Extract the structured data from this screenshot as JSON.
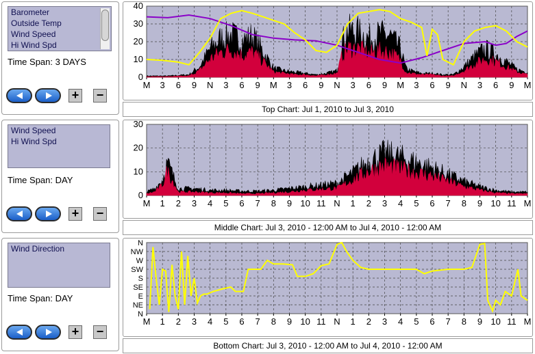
{
  "panels": [
    {
      "list_items": [
        "Barometer",
        "Outside Temp",
        "Wind Speed",
        "Hi Wind Spd"
      ],
      "time_span": "Time Span:   3 DAYS"
    },
    {
      "list_items": [
        "Wind Speed",
        "Hi Wind Spd"
      ],
      "time_span": "Time Span:  DAY"
    },
    {
      "list_items": [
        "Wind Direction"
      ],
      "time_span": "Time Span:  DAY"
    }
  ],
  "buttons": {
    "plus": "+",
    "minus": "−"
  },
  "colors": {
    "plot_bg": "#b9b9d2",
    "black": "#000000",
    "crimson": "#d2003c",
    "yellow": "#ffff00",
    "purple": "#8a00c8",
    "nav_blue": "#2f7ae0"
  },
  "chart_data": [
    {
      "type": "line",
      "title": "Top Chart:  Jul 1, 2010  to  Jul 3, 2010",
      "ylim": [
        0,
        40
      ],
      "yticks": [
        "0",
        "10",
        "20",
        "30",
        "40"
      ],
      "xticks": [
        "M",
        "3",
        "6",
        "9",
        "N",
        "3",
        "6",
        "9",
        "M",
        "3",
        "6",
        "9",
        "N",
        "3",
        "6",
        "9",
        "M",
        "3",
        "6",
        "9",
        "N",
        "3",
        "6",
        "9",
        "M"
      ],
      "x_unit": "hours",
      "xlim": [
        0,
        72
      ],
      "series": [
        {
          "key": "purple",
          "points": [
            [
              0,
              34
            ],
            [
              4,
              33.5
            ],
            [
              8,
              35
            ],
            [
              12,
              33
            ],
            [
              16,
              29
            ],
            [
              20,
              24
            ],
            [
              24,
              22
            ],
            [
              28,
              21
            ],
            [
              32,
              20.5
            ],
            [
              36,
              18
            ],
            [
              40,
              14
            ],
            [
              44,
              10
            ],
            [
              48,
              8
            ],
            [
              52,
              11
            ],
            [
              56,
              15
            ],
            [
              60,
              19
            ],
            [
              64,
              20
            ],
            [
              66,
              18
            ],
            [
              68,
              19
            ],
            [
              70,
              23
            ],
            [
              72,
              26
            ]
          ]
        },
        {
          "key": "yellow",
          "points": [
            [
              0,
              10
            ],
            [
              3,
              9.5
            ],
            [
              6,
              8.5
            ],
            [
              8,
              7
            ],
            [
              10,
              14
            ],
            [
              12,
              22
            ],
            [
              14,
              33
            ],
            [
              16,
              36
            ],
            [
              18,
              37.5
            ],
            [
              20,
              36
            ],
            [
              22,
              34
            ],
            [
              24,
              32
            ],
            [
              26,
              30
            ],
            [
              28,
              25
            ],
            [
              30,
              21
            ],
            [
              32,
              15
            ],
            [
              34,
              14
            ],
            [
              36,
              18
            ],
            [
              38,
              30
            ],
            [
              40,
              36
            ],
            [
              42,
              37
            ],
            [
              44,
              38
            ],
            [
              46,
              37
            ],
            [
              48,
              33
            ],
            [
              50,
              31
            ],
            [
              52,
              28
            ],
            [
              53,
              12
            ],
            [
              54,
              27
            ],
            [
              55,
              24
            ],
            [
              56,
              10
            ],
            [
              58,
              7
            ],
            [
              60,
              20
            ],
            [
              62,
              26
            ],
            [
              64,
              28
            ],
            [
              66,
              29
            ],
            [
              68,
              26
            ],
            [
              70,
              20
            ],
            [
              72,
              17
            ]
          ]
        },
        {
          "key": "black_band",
          "envelope": [
            [
              0,
              1
            ],
            [
              4,
              1
            ],
            [
              8,
              2
            ],
            [
              10,
              8
            ],
            [
              12,
              22
            ],
            [
              14,
              30
            ],
            [
              16,
              33
            ],
            [
              18,
              28
            ],
            [
              20,
              32
            ],
            [
              22,
              20
            ],
            [
              24,
              7
            ],
            [
              26,
              5
            ],
            [
              28,
              4
            ],
            [
              30,
              3
            ],
            [
              32,
              2
            ],
            [
              34,
              3
            ],
            [
              36,
              5
            ],
            [
              37,
              28
            ],
            [
              38,
              36
            ],
            [
              40,
              35
            ],
            [
              42,
              30
            ],
            [
              44,
              33
            ],
            [
              46,
              32
            ],
            [
              48,
              22
            ],
            [
              49,
              7
            ],
            [
              50,
              5
            ],
            [
              52,
              3
            ],
            [
              54,
              3
            ],
            [
              56,
              2
            ],
            [
              58,
              2
            ],
            [
              60,
              8
            ],
            [
              62,
              16
            ],
            [
              64,
              22
            ],
            [
              66,
              18
            ],
            [
              68,
              12
            ],
            [
              70,
              6
            ],
            [
              72,
              4
            ]
          ]
        },
        {
          "key": "red_band",
          "envelope": [
            [
              0,
              0.5
            ],
            [
              4,
              0.5
            ],
            [
              8,
              1
            ],
            [
              10,
              5
            ],
            [
              12,
              14
            ],
            [
              14,
              19
            ],
            [
              16,
              21
            ],
            [
              18,
              17
            ],
            [
              20,
              19
            ],
            [
              22,
              12
            ],
            [
              24,
              4
            ],
            [
              26,
              3
            ],
            [
              28,
              2
            ],
            [
              30,
              2
            ],
            [
              32,
              1
            ],
            [
              34,
              2
            ],
            [
              36,
              3
            ],
            [
              37,
              17
            ],
            [
              38,
              22
            ],
            [
              40,
              22
            ],
            [
              42,
              18
            ],
            [
              44,
              20
            ],
            [
              46,
              19
            ],
            [
              48,
              13
            ],
            [
              49,
              4
            ],
            [
              50,
              3
            ],
            [
              52,
              2
            ],
            [
              54,
              2
            ],
            [
              56,
              1
            ],
            [
              58,
              1
            ],
            [
              60,
              5
            ],
            [
              62,
              10
            ],
            [
              64,
              14
            ],
            [
              66,
              12
            ],
            [
              68,
              8
            ],
            [
              70,
              4
            ],
            [
              72,
              2
            ]
          ]
        }
      ]
    },
    {
      "type": "line",
      "title": "Middle Chart:  Jul 3, 2010 - 12:00 AM  to  Jul 4, 2010 - 12:00 AM",
      "ylim": [
        0,
        30
      ],
      "yticks": [
        "0",
        "10",
        "20",
        "30"
      ],
      "xticks": [
        "M",
        "1",
        "2",
        "3",
        "4",
        "5",
        "6",
        "7",
        "8",
        "9",
        "10",
        "11",
        "N",
        "1",
        "2",
        "3",
        "4",
        "5",
        "6",
        "7",
        "8",
        "9",
        "10",
        "11",
        "M"
      ],
      "x_unit": "hours",
      "xlim": [
        0,
        24
      ],
      "series": [
        {
          "key": "black_band",
          "envelope": [
            [
              0,
              2
            ],
            [
              0.5,
              4
            ],
            [
              1,
              9
            ],
            [
              1.3,
              19
            ],
            [
              1.6,
              13
            ],
            [
              2,
              4
            ],
            [
              3,
              4
            ],
            [
              4,
              3
            ],
            [
              5,
              3
            ],
            [
              6,
              2.5
            ],
            [
              7,
              2.5
            ],
            [
              8,
              3
            ],
            [
              9,
              4
            ],
            [
              10,
              5
            ],
            [
              11,
              6
            ],
            [
              12,
              7
            ],
            [
              13,
              13
            ],
            [
              14,
              20
            ],
            [
              15,
              24
            ],
            [
              16,
              22
            ],
            [
              17,
              19
            ],
            [
              18,
              16
            ],
            [
              19,
              12
            ],
            [
              20,
              8
            ],
            [
              21,
              5
            ],
            [
              22,
              3
            ],
            [
              23,
              2
            ],
            [
              24,
              2
            ]
          ]
        },
        {
          "key": "red_band",
          "envelope": [
            [
              0,
              1
            ],
            [
              0.5,
              2
            ],
            [
              1,
              6
            ],
            [
              1.3,
              14
            ],
            [
              1.6,
              9
            ],
            [
              2,
              2
            ],
            [
              3,
              2
            ],
            [
              4,
              1.5
            ],
            [
              5,
              1.5
            ],
            [
              6,
              1
            ],
            [
              7,
              1
            ],
            [
              8,
              1.5
            ],
            [
              9,
              2
            ],
            [
              10,
              3
            ],
            [
              11,
              3.5
            ],
            [
              12,
              4
            ],
            [
              13,
              9
            ],
            [
              14,
              14
            ],
            [
              15,
              17
            ],
            [
              16,
              15
            ],
            [
              17,
              13
            ],
            [
              18,
              11
            ],
            [
              19,
              8
            ],
            [
              20,
              5
            ],
            [
              21,
              3
            ],
            [
              22,
              1.5
            ],
            [
              23,
              1
            ],
            [
              24,
              1
            ]
          ]
        }
      ]
    },
    {
      "type": "line",
      "title": "Bottom Chart:  Jul 3, 2010 - 12:00 AM  to  Jul 4, 2010 - 12:00 AM",
      "ylim": [
        0,
        8
      ],
      "yticks": [
        "N",
        "NE",
        "E",
        "SE",
        "S",
        "SW",
        "W",
        "NW",
        "N"
      ],
      "xticks": [
        "M",
        "1",
        "2",
        "3",
        "4",
        "5",
        "6",
        "7",
        "8",
        "9",
        "10",
        "11",
        "N",
        "1",
        "2",
        "3",
        "4",
        "5",
        "6",
        "7",
        "8",
        "9",
        "10",
        "11",
        "M"
      ],
      "x_unit": "hours",
      "xlim": [
        0,
        24
      ],
      "series": [
        {
          "key": "yellow",
          "points": [
            [
              0.2,
              0.5
            ],
            [
              0.4,
              7.5
            ],
            [
              0.6,
              4
            ],
            [
              0.8,
              1
            ],
            [
              1,
              5
            ],
            [
              1.2,
              4.8
            ],
            [
              1.4,
              0.2
            ],
            [
              1.6,
              5.5
            ],
            [
              1.8,
              2
            ],
            [
              2,
              0.5
            ],
            [
              2.2,
              7
            ],
            [
              2.4,
              1
            ],
            [
              2.6,
              6.5
            ],
            [
              2.8,
              2
            ],
            [
              3,
              4
            ],
            [
              3.2,
              1.2
            ],
            [
              3.4,
              2
            ],
            [
              3.6,
              2.2
            ],
            [
              3.8,
              2.2
            ],
            [
              4.2,
              2.5
            ],
            [
              4.8,
              2.8
            ],
            [
              5.3,
              3
            ],
            [
              5.6,
              2.5
            ],
            [
              6.1,
              2.5
            ],
            [
              6.4,
              5
            ],
            [
              6.8,
              5
            ],
            [
              7.2,
              5
            ],
            [
              7.6,
              6
            ],
            [
              8,
              5.6
            ],
            [
              8.6,
              5.6
            ],
            [
              9.2,
              5.5
            ],
            [
              9.5,
              4.2
            ],
            [
              10,
              4.2
            ],
            [
              10.5,
              4.5
            ],
            [
              11,
              5.4
            ],
            [
              11.5,
              5.6
            ],
            [
              12,
              7.8
            ],
            [
              12.3,
              8
            ],
            [
              12.6,
              7
            ],
            [
              13,
              6
            ],
            [
              13.5,
              5.2
            ],
            [
              14,
              5
            ],
            [
              15,
              5
            ],
            [
              16,
              5
            ],
            [
              17,
              5
            ],
            [
              17.5,
              4.5
            ],
            [
              18,
              4.8
            ],
            [
              19,
              5
            ],
            [
              20,
              5
            ],
            [
              20.5,
              5.2
            ],
            [
              21,
              7.8
            ],
            [
              21.3,
              7.9
            ],
            [
              21.5,
              1.5
            ],
            [
              21.8,
              0.3
            ],
            [
              22,
              1.5
            ],
            [
              22.3,
              1
            ],
            [
              22.6,
              2.5
            ],
            [
              23,
              2
            ],
            [
              23.4,
              5
            ],
            [
              23.6,
              2
            ],
            [
              24,
              1.5
            ]
          ]
        }
      ]
    }
  ]
}
